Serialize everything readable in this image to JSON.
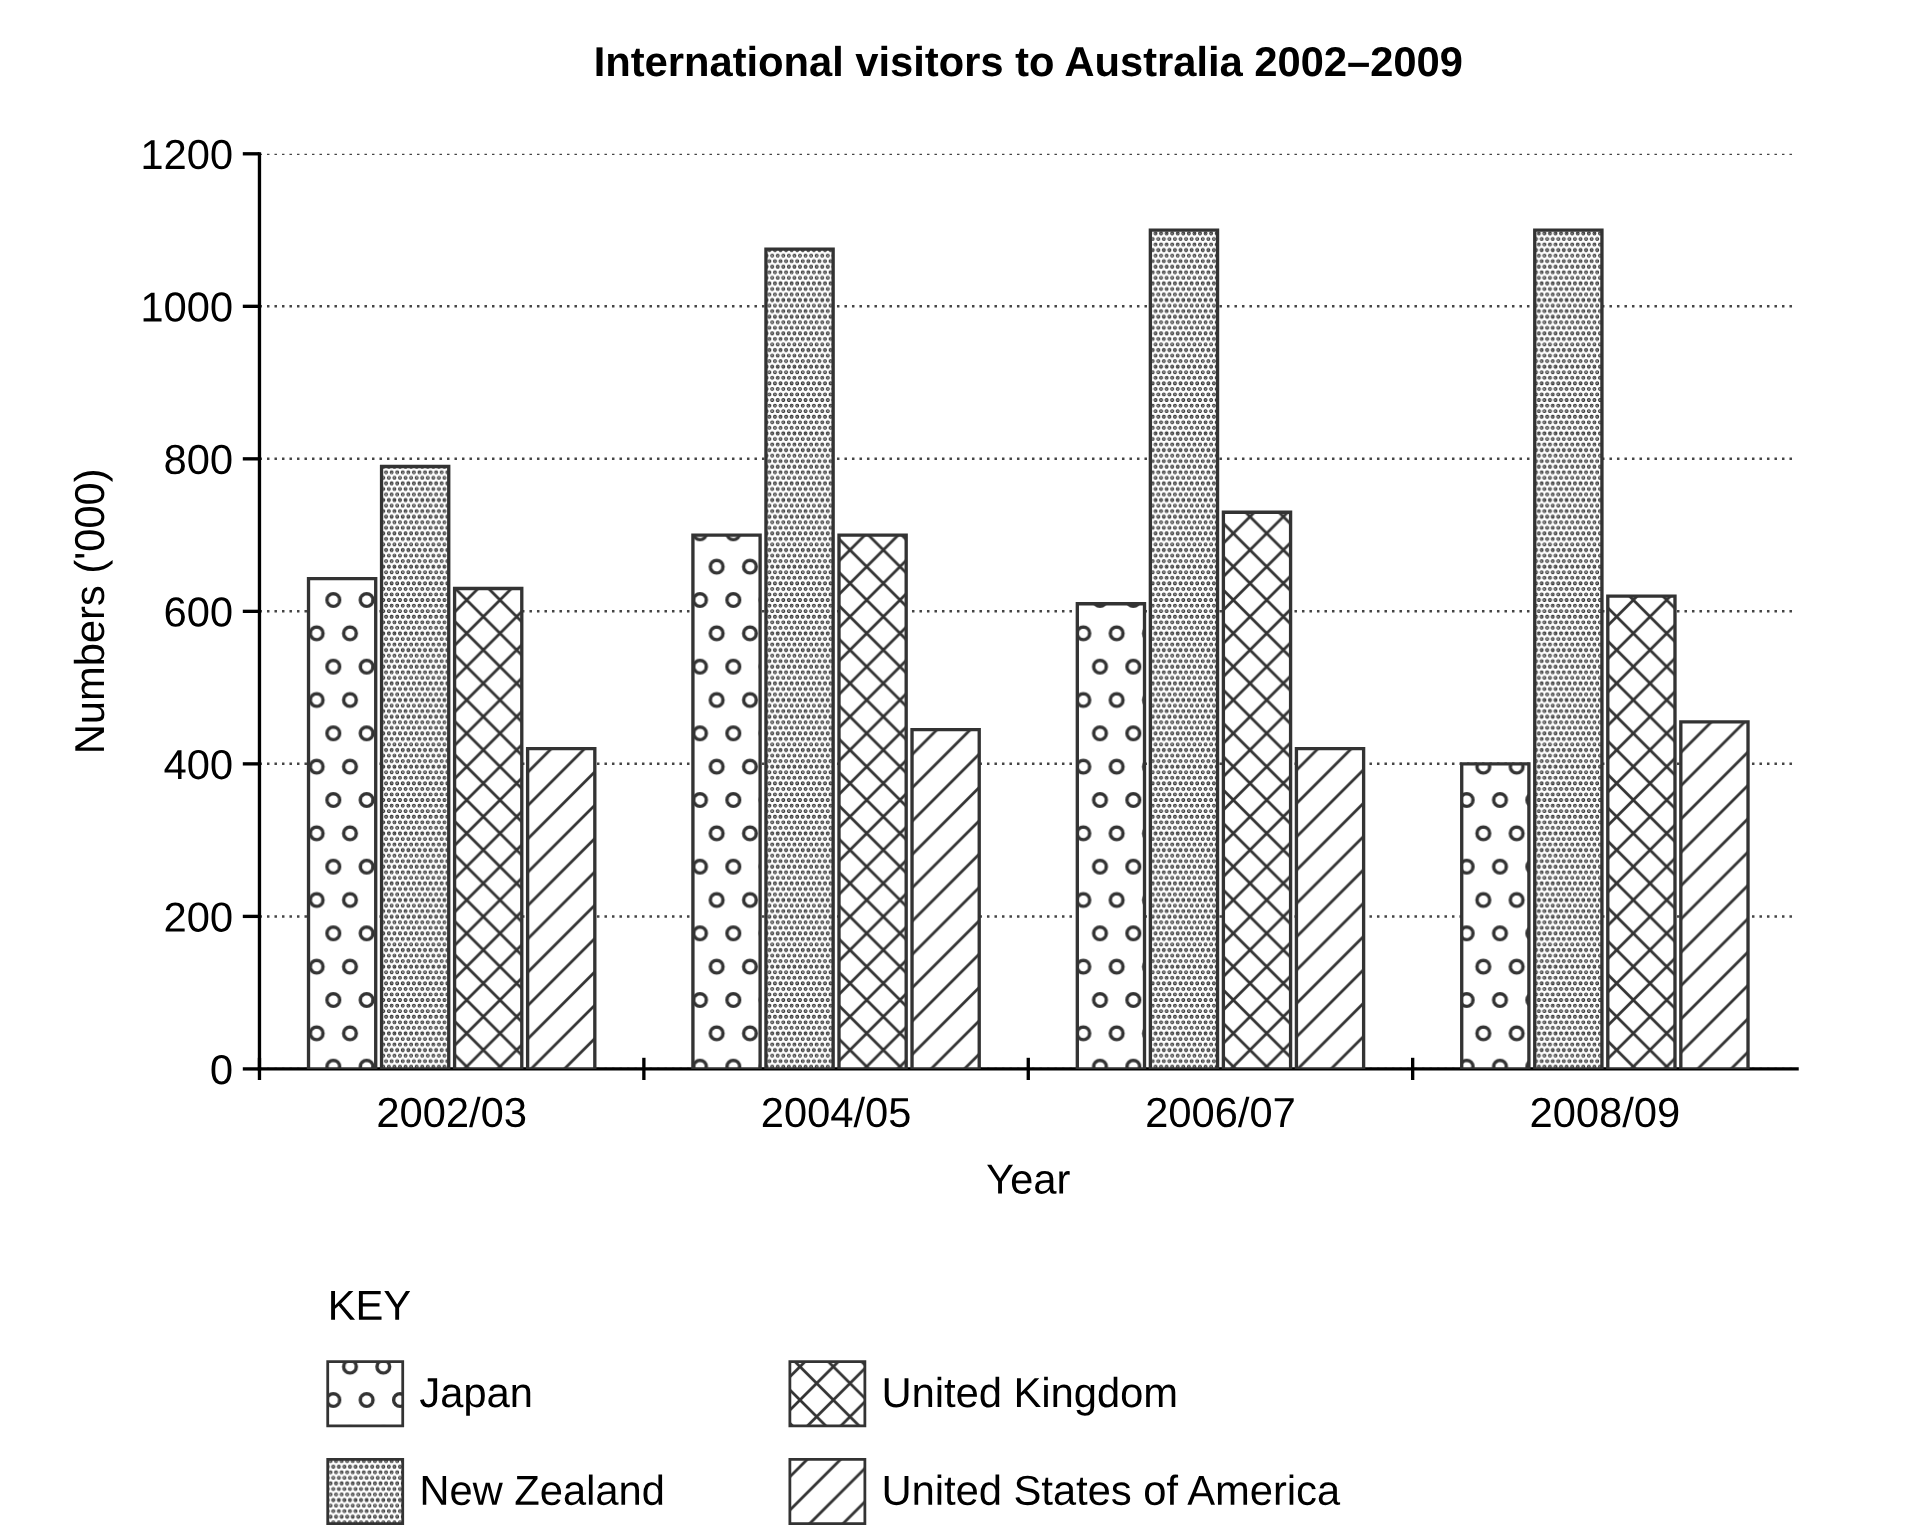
{
  "chart_data": {
    "type": "bar",
    "title": "International visitors to Australia 2002–2009",
    "xlabel": "Year",
    "ylabel": "Numbers ('000)",
    "legend_title": "KEY",
    "categories": [
      "2002/03",
      "2004/05",
      "2006/07",
      "2008/09"
    ],
    "series": [
      {
        "name": "Japan",
        "color": "#333333",
        "values": [
          643,
          700,
          610,
          400
        ]
      },
      {
        "name": "New Zealand",
        "color": "#333333",
        "values": [
          790,
          1075,
          1100,
          1100
        ]
      },
      {
        "name": "United Kingdom",
        "color": "#333333",
        "values": [
          630,
          700,
          730,
          620
        ]
      },
      {
        "name": "United States of America",
        "color": "#333333",
        "values": [
          420,
          445,
          420,
          455
        ]
      }
    ],
    "ylim": [
      0,
      1200
    ],
    "yticks": [
      0,
      200,
      400,
      600,
      800,
      1000,
      1200
    ],
    "grid": "y",
    "legend": "bottom"
  }
}
